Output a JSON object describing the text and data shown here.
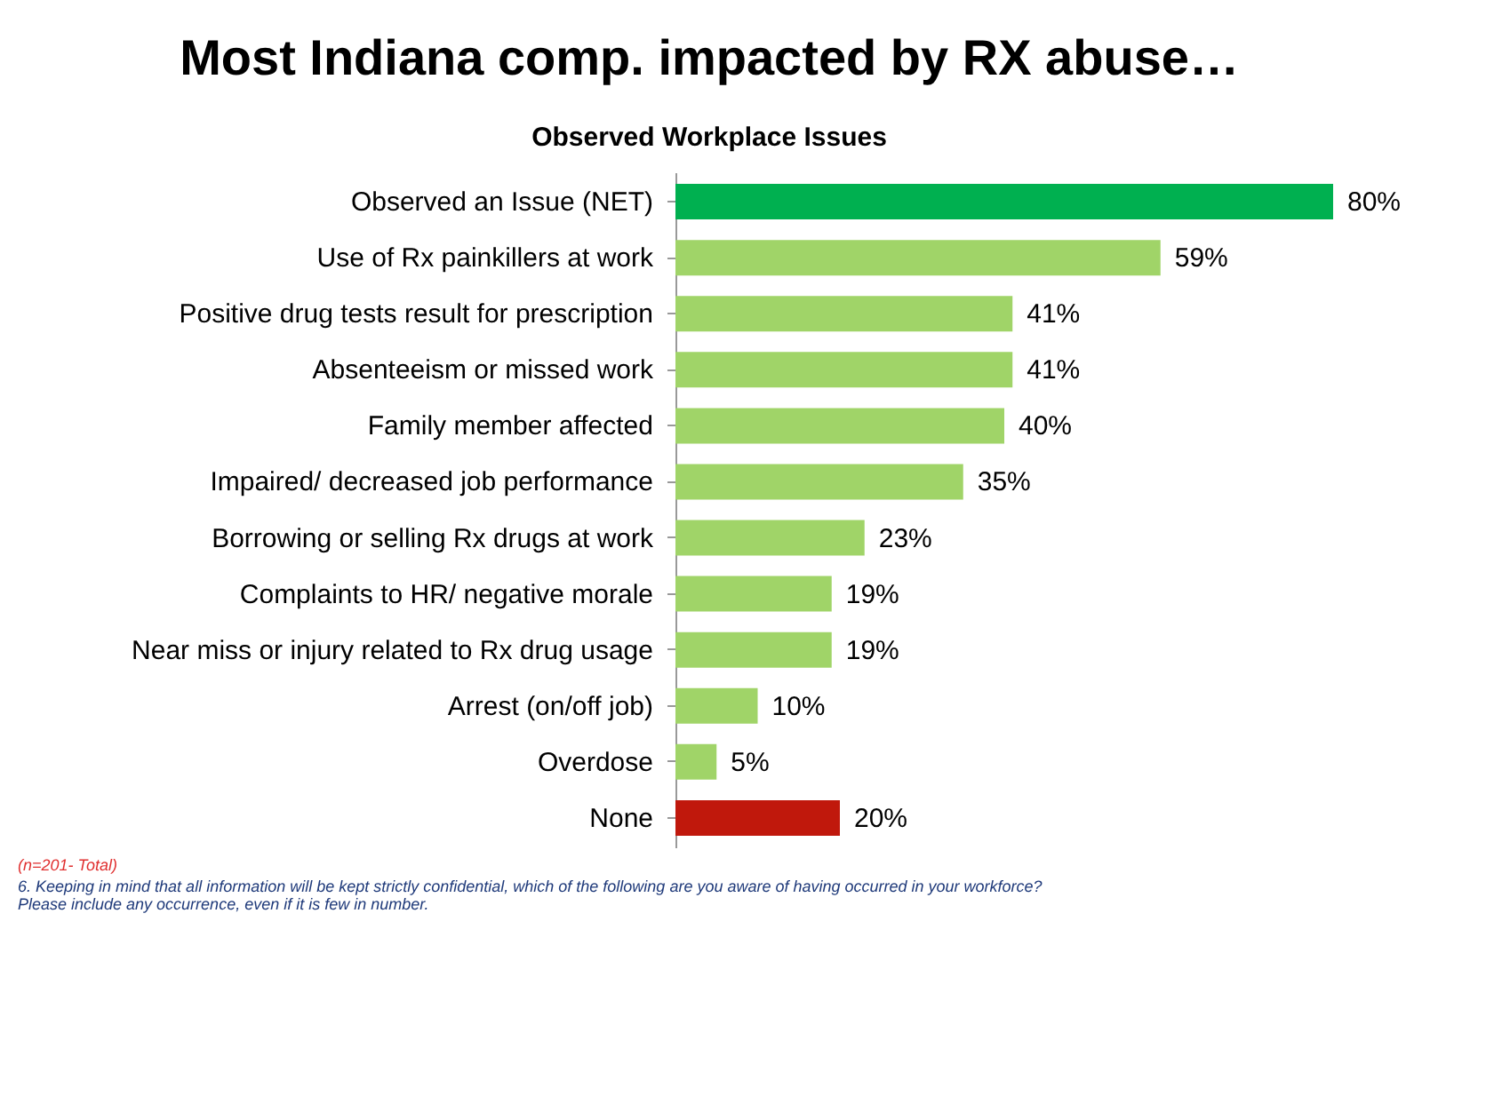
{
  "chart_data": {
    "type": "bar",
    "orientation": "horizontal",
    "title": "Most Indiana comp. impacted by RX abuse…",
    "subtitle": "Observed Workplace Issues",
    "categories": [
      "Observed an Issue (NET)",
      "Use of Rx painkillers at work",
      "Positive drug tests result for prescription",
      "Absenteeism or missed work",
      "Family member affected",
      "Impaired/ decreased job performance",
      "Borrowing or selling Rx drugs at work",
      "Complaints to HR/ negative morale",
      "Near miss or injury related to Rx drug usage",
      "Arrest (on/off job)",
      "Overdose",
      "None"
    ],
    "values": [
      80,
      59,
      41,
      41,
      40,
      35,
      23,
      19,
      19,
      10,
      5,
      20
    ],
    "colors": [
      "#00b050",
      "#a0d468",
      "#a0d468",
      "#a0d468",
      "#a0d468",
      "#a0d468",
      "#a0d468",
      "#a0d468",
      "#a0d468",
      "#a0d468",
      "#a0d468",
      "#c0180c"
    ],
    "value_labels": [
      "80%",
      "59%",
      "41%",
      "41%",
      "40%",
      "35%",
      "23%",
      "19%",
      "19%",
      "10%",
      "5%",
      "20%"
    ],
    "tick_labels": "y",
    "annotations": [
      "(n=201- Total)",
      "6.   Keeping in mind that all information will be kept strictly confidential, which of the following are you aware of having occurred in your workforce?",
      "      Please include any occurrence, even if it is few in number."
    ]
  }
}
